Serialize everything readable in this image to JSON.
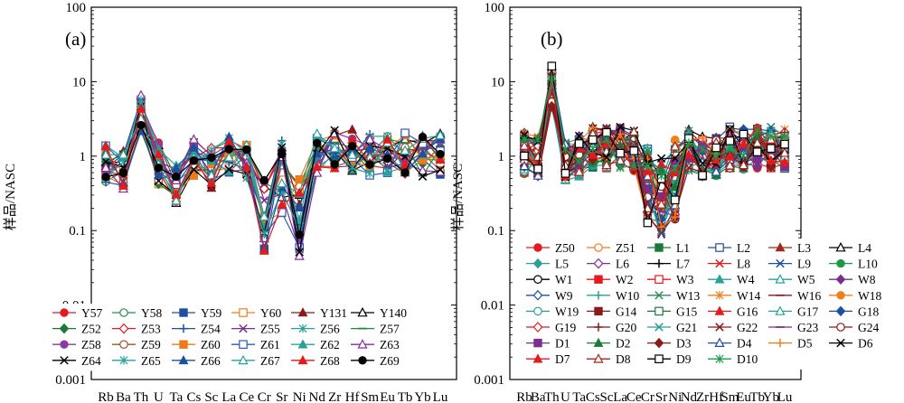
{
  "chart_data": [
    {
      "type": "line",
      "panel_label": "(a)",
      "ylabel": "样品/NASC",
      "yscale": "log",
      "ylim": [
        0.001,
        100
      ],
      "y_ticks": [
        "0.001",
        "0.01",
        "0.1",
        "1",
        "10",
        "100"
      ],
      "categories": [
        "Rb",
        "Ba",
        "Th",
        "U",
        "Ta",
        "Cs",
        "Sc",
        "La",
        "Ce",
        "Cr",
        "Sr",
        "Ni",
        "Nd",
        "Zr",
        "Hf",
        "Sm",
        "Eu",
        "Tb",
        "Yb",
        "Lu"
      ],
      "legend_location": "inside-bottom",
      "series_names": [
        "Y57",
        "Y58",
        "Y59",
        "Y60",
        "Y131",
        "Y140",
        "Z52",
        "Z53",
        "Z54",
        "Z55",
        "Z56",
        "Z57",
        "Z58",
        "Z59",
        "Z60",
        "Z61",
        "Z62",
        "Z63",
        "Z64",
        "Z65",
        "Z66",
        "Z67",
        "Z68",
        "Z69"
      ],
      "series_colors": [
        "#e41a1c",
        "#2e8b57",
        "#1f4fa0",
        "#f07f1a",
        "#8b1a1a",
        "#000000",
        "#1a7a3a",
        "#e41a1c",
        "#1f4fa0",
        "#7a2e8e",
        "#2aa198",
        "#1f8a3c",
        "#8e3a9e",
        "#a0522d",
        "#ef7a1a",
        "#2d5ab8",
        "#2aa198",
        "#8e2aa0",
        "#000000",
        "#2aa198",
        "#1f4fa0",
        "#2aa198",
        "#e41a1c",
        "#000000"
      ],
      "series_markers": [
        "circle",
        "circle-open",
        "square",
        "square-open",
        "triangle",
        "triangle-open",
        "diamond",
        "diamond-open",
        "plus",
        "x",
        "asterisk",
        "dash",
        "circle",
        "circle-open",
        "square",
        "square-open",
        "triangle",
        "triangle-open",
        "x",
        "asterisk",
        "triangle",
        "triangle-open",
        "triangle",
        "circle"
      ]
    },
    {
      "type": "line",
      "panel_label": "(b)",
      "ylabel": "样品/NASC",
      "yscale": "log",
      "ylim": [
        0.001,
        100
      ],
      "y_ticks": [
        "0.001",
        "0.01",
        "0.1",
        "1",
        "10",
        "100"
      ],
      "categories": [
        "Rb",
        "Ba",
        "Th",
        "U",
        "Ta",
        "Cs",
        "Sc",
        "La",
        "Ce",
        "Cr",
        "Sr",
        "Ni",
        "Nd",
        "Zr",
        "Hf",
        "Sm",
        "Eu",
        "Tb",
        "Yb",
        "Lu"
      ],
      "legend_location": "inside-bottom",
      "series_names": [
        "Z50",
        "Z51",
        "L1",
        "L2",
        "L3",
        "L4",
        "L5",
        "L6",
        "L7",
        "L8",
        "L9",
        "L10",
        "W1",
        "W2",
        "W3",
        "W4",
        "W5",
        "W8",
        "W9",
        "W10",
        "W13",
        "W14",
        "W16",
        "W18",
        "W19",
        "G14",
        "G15",
        "G16",
        "G17",
        "G18",
        "G19",
        "G20",
        "G21",
        "G22",
        "G23",
        "G24",
        "D1",
        "D2",
        "D3",
        "D4",
        "D5",
        "D6",
        "D7",
        "D8",
        "D9",
        "D10"
      ],
      "series_colors": [
        "#e41a1c",
        "#f07f1a",
        "#1a7a3a",
        "#1f4fa0",
        "#a0281e",
        "#000000",
        "#2aa198",
        "#7a2e8e",
        "#000000",
        "#e41a1c",
        "#1f4fa0",
        "#1a9a4a",
        "#000000",
        "#e41a1c",
        "#e41a1c",
        "#2aa198",
        "#2aa198",
        "#7a2e8e",
        "#1f4fa0",
        "#2aa198",
        "#2e8b57",
        "#f07f1a",
        "#8b1a1a",
        "#f07f1a",
        "#2aa198",
        "#8b1a1a",
        "#1a7a3a",
        "#e41a1c",
        "#2aa198",
        "#1f4fa0",
        "#e41a1c",
        "#8b1a1a",
        "#2aa198",
        "#8b1a1a",
        "#7a2e8e",
        "#8b1a1a",
        "#7a2e8e",
        "#1a7a3a",
        "#8b1a1a",
        "#1f4fa0",
        "#f07f1a",
        "#000000",
        "#e41a1c",
        "#a0281e",
        "#000000",
        "#1a9a4a"
      ],
      "series_markers": [
        "circle",
        "circle-open",
        "square",
        "square-open",
        "triangle",
        "triangle-open",
        "diamond",
        "diamond-open",
        "plus",
        "x",
        "x",
        "circle",
        "circle-open",
        "square",
        "square-open",
        "triangle",
        "triangle-open",
        "diamond",
        "diamond-open",
        "plus",
        "x",
        "asterisk",
        "dash",
        "circle",
        "circle-open",
        "square",
        "square-open",
        "triangle",
        "triangle-open",
        "diamond",
        "diamond-open",
        "plus",
        "x",
        "x",
        "dash",
        "circle-open",
        "square",
        "triangle",
        "diamond",
        "triangle-open",
        "plus",
        "x",
        "triangle",
        "triangle-open",
        "square-open",
        "asterisk"
      ]
    }
  ]
}
